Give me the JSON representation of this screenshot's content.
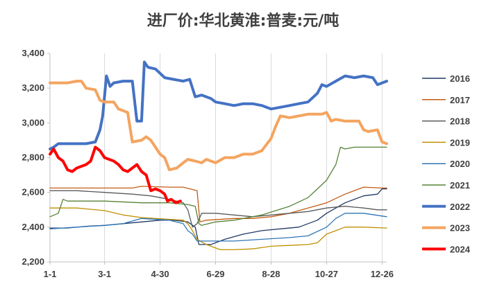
{
  "chart_data": {
    "type": "line",
    "title": "进厂价:华北黄淮:普麦:元/吨",
    "xlabel": "",
    "ylabel": "",
    "ylim": [
      2200,
      3400
    ],
    "yticks": [
      2200,
      2400,
      2600,
      2800,
      3000,
      3200,
      3400
    ],
    "ytick_labels": [
      "2,200",
      "2,400",
      "2,600",
      "2,800",
      "3,000",
      "3,200",
      "3,400"
    ],
    "xlim": [
      1,
      365
    ],
    "xticks": [
      {
        "day": 1,
        "label": "1-1"
      },
      {
        "day": 60,
        "label": "3-1"
      },
      {
        "day": 120,
        "label": "4-30"
      },
      {
        "day": 180,
        "label": "6-29"
      },
      {
        "day": 240,
        "label": "8-28"
      },
      {
        "day": 300,
        "label": "10-27"
      },
      {
        "day": 360,
        "label": "12-26"
      }
    ],
    "grid": "vertical",
    "legend": "right",
    "series": [
      {
        "name": "2016",
        "color": "#1f3864",
        "width": 1.3,
        "points": [
          [
            1,
            2395
          ],
          [
            20,
            2395
          ],
          [
            40,
            2405
          ],
          [
            60,
            2410
          ],
          [
            80,
            2420
          ],
          [
            100,
            2430
          ],
          [
            120,
            2440
          ],
          [
            135,
            2440
          ],
          [
            150,
            2430
          ],
          [
            158,
            2400
          ],
          [
            162,
            2300
          ],
          [
            175,
            2300
          ],
          [
            190,
            2330
          ],
          [
            210,
            2360
          ],
          [
            230,
            2380
          ],
          [
            250,
            2390
          ],
          [
            270,
            2400
          ],
          [
            290,
            2440
          ],
          [
            300,
            2480
          ],
          [
            320,
            2540
          ],
          [
            340,
            2580
          ],
          [
            355,
            2590
          ],
          [
            360,
            2620
          ],
          [
            365,
            2620
          ]
        ]
      },
      {
        "name": "2017",
        "color": "#c55a11",
        "width": 1.3,
        "points": [
          [
            1,
            2625
          ],
          [
            30,
            2625
          ],
          [
            60,
            2625
          ],
          [
            90,
            2625
          ],
          [
            100,
            2635
          ],
          [
            130,
            2630
          ],
          [
            145,
            2630
          ],
          [
            160,
            2610
          ],
          [
            163,
            2430
          ],
          [
            170,
            2440
          ],
          [
            200,
            2450
          ],
          [
            220,
            2450
          ],
          [
            240,
            2460
          ],
          [
            260,
            2480
          ],
          [
            280,
            2510
          ],
          [
            300,
            2540
          ],
          [
            320,
            2590
          ],
          [
            340,
            2630
          ],
          [
            360,
            2625
          ],
          [
            365,
            2625
          ]
        ]
      },
      {
        "name": "2018",
        "color": "#595959",
        "width": 1.3,
        "points": [
          [
            1,
            2610
          ],
          [
            30,
            2610
          ],
          [
            60,
            2600
          ],
          [
            90,
            2590
          ],
          [
            110,
            2580
          ],
          [
            130,
            2560
          ],
          [
            145,
            2540
          ],
          [
            150,
            2500
          ],
          [
            155,
            2400
          ],
          [
            160,
            2420
          ],
          [
            165,
            2480
          ],
          [
            180,
            2480
          ],
          [
            200,
            2470
          ],
          [
            220,
            2460
          ],
          [
            240,
            2470
          ],
          [
            260,
            2480
          ],
          [
            280,
            2490
          ],
          [
            300,
            2510
          ],
          [
            320,
            2520
          ],
          [
            340,
            2510
          ],
          [
            355,
            2500
          ],
          [
            365,
            2500
          ]
        ]
      },
      {
        "name": "2019",
        "color": "#bf8f00",
        "width": 1.3,
        "points": [
          [
            1,
            2510
          ],
          [
            30,
            2510
          ],
          [
            60,
            2495
          ],
          [
            80,
            2470
          ],
          [
            100,
            2455
          ],
          [
            130,
            2445
          ],
          [
            145,
            2440
          ],
          [
            150,
            2420
          ],
          [
            155,
            2380
          ],
          [
            160,
            2330
          ],
          [
            170,
            2300
          ],
          [
            185,
            2270
          ],
          [
            200,
            2270
          ],
          [
            220,
            2275
          ],
          [
            240,
            2290
          ],
          [
            260,
            2295
          ],
          [
            280,
            2300
          ],
          [
            290,
            2310
          ],
          [
            300,
            2360
          ],
          [
            310,
            2380
          ],
          [
            320,
            2400
          ],
          [
            340,
            2400
          ],
          [
            365,
            2395
          ]
        ]
      },
      {
        "name": "2020",
        "color": "#2e75b6",
        "width": 1.3,
        "points": [
          [
            1,
            2390
          ],
          [
            30,
            2400
          ],
          [
            60,
            2410
          ],
          [
            80,
            2420
          ],
          [
            100,
            2450
          ],
          [
            130,
            2440
          ],
          [
            145,
            2420
          ],
          [
            150,
            2380
          ],
          [
            155,
            2360
          ],
          [
            160,
            2320
          ],
          [
            180,
            2320
          ],
          [
            200,
            2320
          ],
          [
            230,
            2330
          ],
          [
            260,
            2340
          ],
          [
            280,
            2350
          ],
          [
            300,
            2400
          ],
          [
            310,
            2450
          ],
          [
            320,
            2480
          ],
          [
            340,
            2480
          ],
          [
            365,
            2460
          ]
        ]
      },
      {
        "name": "2021",
        "color": "#548235",
        "width": 1.3,
        "points": [
          [
            1,
            2460
          ],
          [
            10,
            2480
          ],
          [
            15,
            2560
          ],
          [
            20,
            2550
          ],
          [
            60,
            2550
          ],
          [
            100,
            2540
          ],
          [
            130,
            2540
          ],
          [
            150,
            2530
          ],
          [
            158,
            2520
          ],
          [
            162,
            2420
          ],
          [
            165,
            2410
          ],
          [
            180,
            2430
          ],
          [
            200,
            2440
          ],
          [
            230,
            2470
          ],
          [
            260,
            2520
          ],
          [
            280,
            2570
          ],
          [
            290,
            2620
          ],
          [
            300,
            2670
          ],
          [
            310,
            2760
          ],
          [
            315,
            2860
          ],
          [
            320,
            2850
          ],
          [
            330,
            2860
          ],
          [
            350,
            2860
          ],
          [
            365,
            2860
          ]
        ]
      },
      {
        "name": "2022",
        "color": "#4472c4",
        "width": 4,
        "points": [
          [
            1,
            2850
          ],
          [
            5,
            2860
          ],
          [
            10,
            2880
          ],
          [
            40,
            2880
          ],
          [
            50,
            2890
          ],
          [
            55,
            2960
          ],
          [
            58,
            3040
          ],
          [
            62,
            3270
          ],
          [
            66,
            3210
          ],
          [
            70,
            3230
          ],
          [
            80,
            3240
          ],
          [
            90,
            3240
          ],
          [
            95,
            3010
          ],
          [
            100,
            3010
          ],
          [
            103,
            3350
          ],
          [
            107,
            3320
          ],
          [
            115,
            3310
          ],
          [
            125,
            3260
          ],
          [
            135,
            3250
          ],
          [
            145,
            3240
          ],
          [
            152,
            3250
          ],
          [
            158,
            3150
          ],
          [
            165,
            3160
          ],
          [
            175,
            3140
          ],
          [
            180,
            3120
          ],
          [
            190,
            3110
          ],
          [
            200,
            3100
          ],
          [
            210,
            3110
          ],
          [
            220,
            3110
          ],
          [
            230,
            3100
          ],
          [
            240,
            3080
          ],
          [
            250,
            3090
          ],
          [
            260,
            3100
          ],
          [
            270,
            3110
          ],
          [
            280,
            3120
          ],
          [
            290,
            3170
          ],
          [
            295,
            3220
          ],
          [
            300,
            3210
          ],
          [
            310,
            3240
          ],
          [
            320,
            3270
          ],
          [
            330,
            3260
          ],
          [
            340,
            3270
          ],
          [
            350,
            3260
          ],
          [
            355,
            3220
          ],
          [
            365,
            3240
          ]
        ]
      },
      {
        "name": "2023",
        "color": "#f4a460",
        "width": 4,
        "points": [
          [
            1,
            3230
          ],
          [
            20,
            3230
          ],
          [
            30,
            3240
          ],
          [
            35,
            3240
          ],
          [
            40,
            3200
          ],
          [
            50,
            3190
          ],
          [
            55,
            3130
          ],
          [
            60,
            3120
          ],
          [
            70,
            3120
          ],
          [
            75,
            3080
          ],
          [
            85,
            3060
          ],
          [
            90,
            2890
          ],
          [
            100,
            2900
          ],
          [
            105,
            2920
          ],
          [
            110,
            2900
          ],
          [
            115,
            2860
          ],
          [
            120,
            2820
          ],
          [
            125,
            2800
          ],
          [
            130,
            2730
          ],
          [
            138,
            2740
          ],
          [
            145,
            2770
          ],
          [
            150,
            2790
          ],
          [
            158,
            2780
          ],
          [
            165,
            2770
          ],
          [
            170,
            2790
          ],
          [
            180,
            2770
          ],
          [
            190,
            2800
          ],
          [
            200,
            2800
          ],
          [
            210,
            2820
          ],
          [
            220,
            2820
          ],
          [
            230,
            2840
          ],
          [
            240,
            2910
          ],
          [
            245,
            2980
          ],
          [
            250,
            3040
          ],
          [
            260,
            3030
          ],
          [
            270,
            3040
          ],
          [
            280,
            3050
          ],
          [
            290,
            3050
          ],
          [
            295,
            3050
          ],
          [
            300,
            3060
          ],
          [
            305,
            3010
          ],
          [
            310,
            3020
          ],
          [
            320,
            3010
          ],
          [
            335,
            3010
          ],
          [
            340,
            2960
          ],
          [
            345,
            2950
          ],
          [
            355,
            2960
          ],
          [
            360,
            2890
          ],
          [
            365,
            2880
          ]
        ]
      },
      {
        "name": "2024",
        "color": "#ff0000",
        "width": 4,
        "points": [
          [
            1,
            2820
          ],
          [
            5,
            2850
          ],
          [
            10,
            2800
          ],
          [
            15,
            2780
          ],
          [
            20,
            2730
          ],
          [
            25,
            2720
          ],
          [
            30,
            2740
          ],
          [
            40,
            2760
          ],
          [
            45,
            2780
          ],
          [
            50,
            2860
          ],
          [
            55,
            2840
          ],
          [
            60,
            2800
          ],
          [
            65,
            2790
          ],
          [
            70,
            2780
          ],
          [
            75,
            2760
          ],
          [
            80,
            2730
          ],
          [
            85,
            2720
          ],
          [
            90,
            2740
          ],
          [
            95,
            2760
          ],
          [
            100,
            2720
          ],
          [
            105,
            2700
          ],
          [
            110,
            2610
          ],
          [
            115,
            2620
          ],
          [
            120,
            2610
          ],
          [
            125,
            2590
          ],
          [
            128,
            2550
          ],
          [
            132,
            2560
          ],
          [
            137,
            2540
          ],
          [
            142,
            2550
          ]
        ]
      }
    ]
  }
}
